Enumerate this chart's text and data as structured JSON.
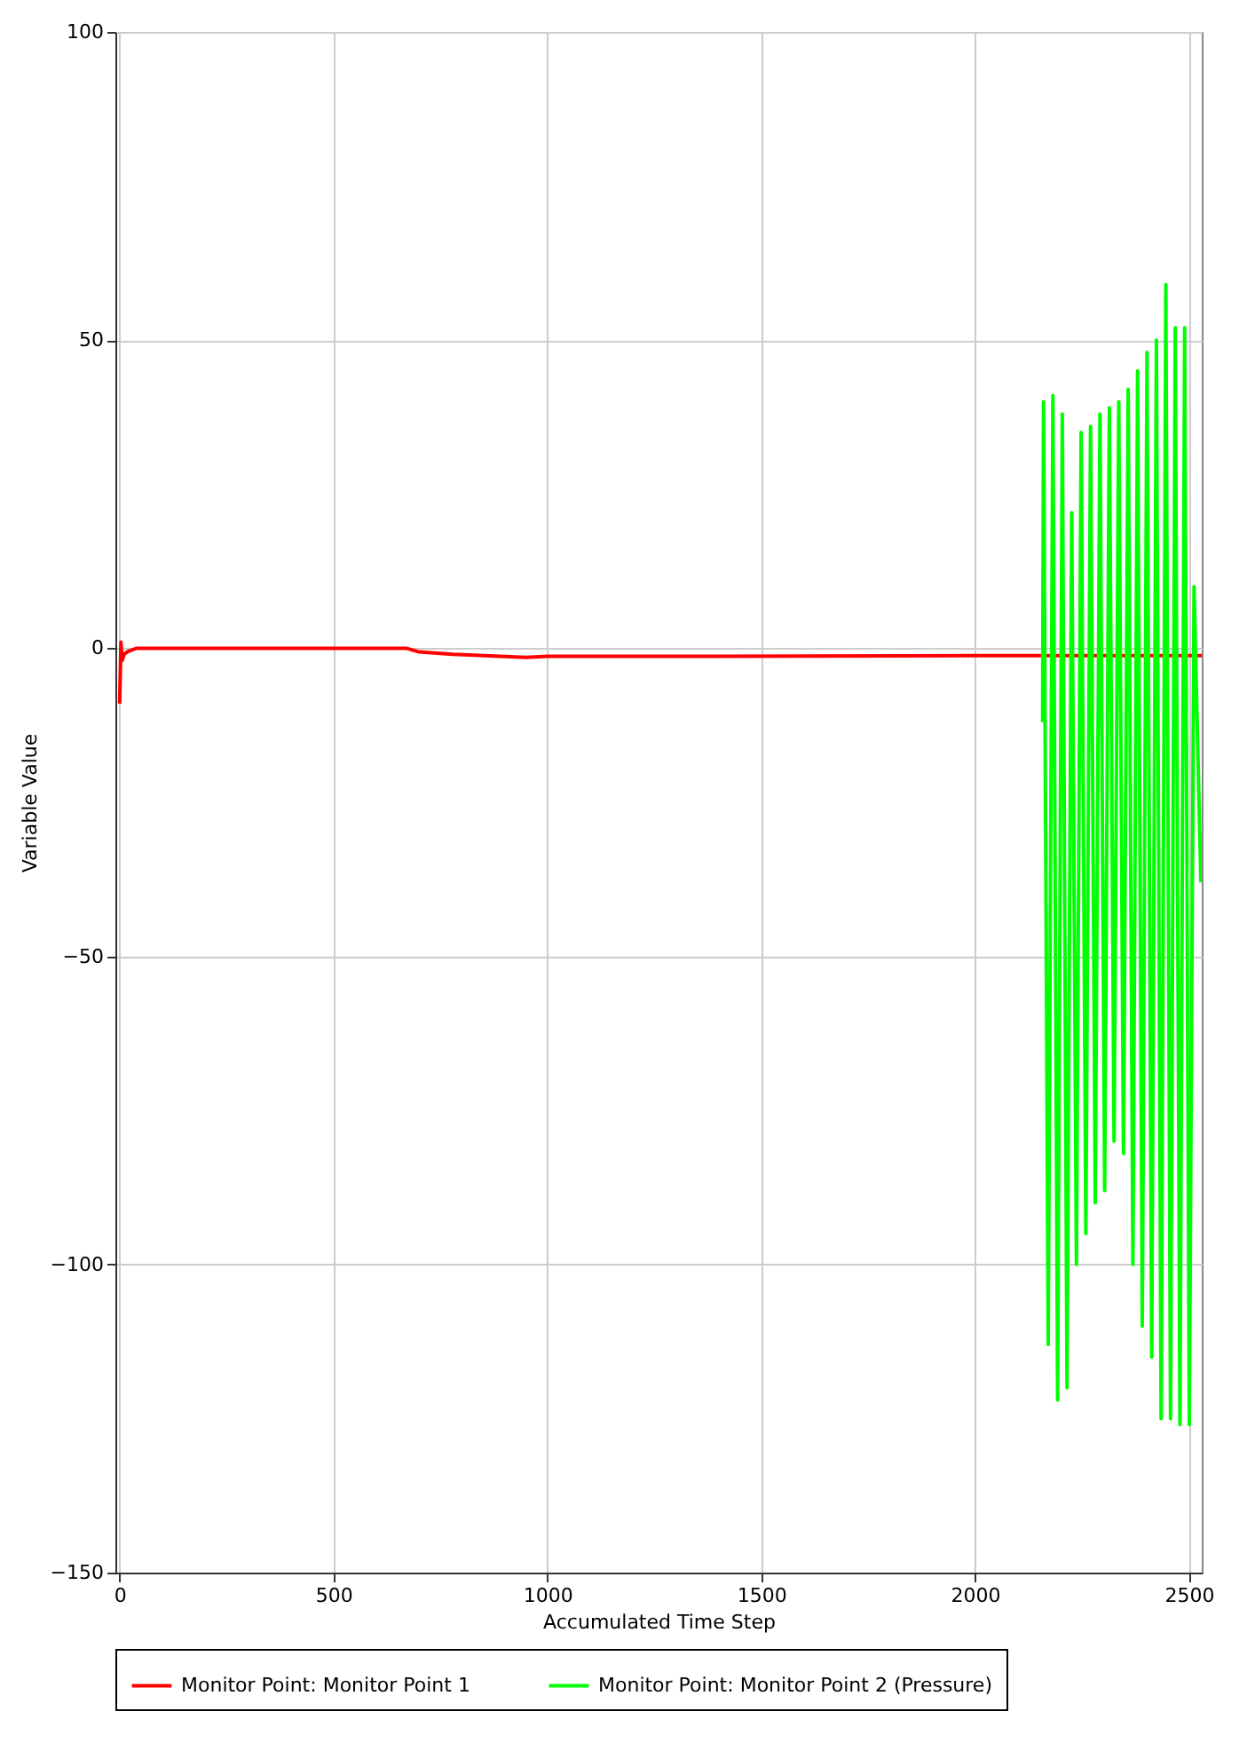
{
  "chart_data": {
    "type": "line",
    "xlabel": "Accumulated Time Step",
    "ylabel": "Variable Value",
    "xlim": [
      -10,
      2530
    ],
    "ylim": [
      -150,
      100
    ],
    "xticks": [
      0,
      500,
      1000,
      1500,
      2000,
      2500
    ],
    "yticks": [
      -150,
      -100,
      -50,
      0,
      50,
      100
    ],
    "grid": true,
    "legend": "bottom",
    "series": [
      {
        "name": "Monitor Point: Monitor Point 1",
        "color": "#ff0000",
        "x": [
          0,
          3,
          6,
          10,
          20,
          40,
          60,
          100,
          670,
          700,
          780,
          950,
          1000,
          1400,
          2000,
          2530
        ],
        "values": [
          -9,
          1,
          -2,
          -1,
          -0.5,
          0,
          0,
          0,
          0,
          -0.6,
          -1,
          -1.5,
          -1.3,
          -1.3,
          -1.2,
          -1.2
        ]
      },
      {
        "name": "Monitor Point: Monitor Point 2 (Pressure)",
        "color": "#00ff00",
        "x": [
          2158,
          2160,
          2171,
          2182,
          2193,
          2204,
          2215,
          2226,
          2237,
          2248,
          2259,
          2270,
          2281,
          2292,
          2303,
          2314,
          2325,
          2336,
          2347,
          2358,
          2369,
          2380,
          2391,
          2402,
          2413,
          2424,
          2435,
          2446,
          2457,
          2468,
          2479,
          2490,
          2501,
          2512,
          2528
        ],
        "values": [
          -12,
          40,
          -113,
          41,
          -122,
          38,
          -120,
          22,
          -100,
          35,
          -95,
          36,
          -90,
          38,
          -88,
          39,
          -80,
          40,
          -82,
          42,
          -100,
          45,
          -110,
          48,
          -115,
          50,
          -125,
          59,
          -125,
          52,
          -126,
          52,
          -126,
          10,
          -38
        ]
      }
    ]
  }
}
